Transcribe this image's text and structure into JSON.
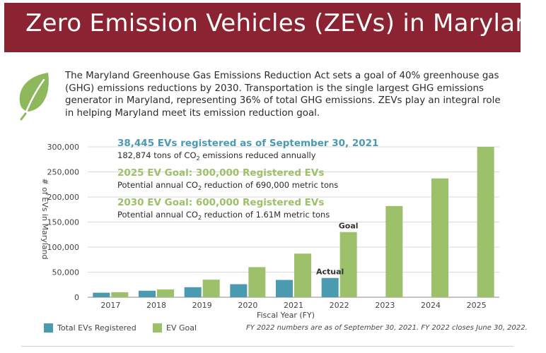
{
  "header": {
    "title": "Zero Emission Vehicles (ZEVs) in Maryland"
  },
  "intro": {
    "text": "The Maryland Greenhouse Gas Emissions Reduction Act sets a goal of 40% greenhouse gas (GHG) emissions reductions by 2030. Transportation is the single largest GHG emissions generator in Maryland, representing 36% of total GHG emissions. ZEVs play an integral role in helping Maryland meet its emission reduction goal."
  },
  "colors": {
    "header": "#8b2332",
    "registered": "#4a9bb0",
    "goal": "#9dc06a",
    "leaf": "#8db85c"
  },
  "chart_data": {
    "type": "bar",
    "categories": [
      "2017",
      "2018",
      "2019",
      "2020",
      "2021",
      "2022",
      "2023",
      "2024",
      "2025"
    ],
    "series": [
      {
        "name": "Total EVs Registered",
        "values": [
          9000,
          13000,
          20000,
          26000,
          34500,
          38445,
          null,
          null,
          null
        ]
      },
      {
        "name": "EV Goal",
        "values": [
          10000,
          15500,
          35000,
          60000,
          87000,
          130000,
          182000,
          237000,
          300000
        ]
      }
    ],
    "xlabel": "Fiscal Year (FY)",
    "ylabel": "# of EVs in Maryland",
    "ylim": [
      0,
      300000
    ],
    "yticks": [
      0,
      50000,
      100000,
      150000,
      200000,
      250000,
      300000
    ],
    "ytick_labels": [
      "0",
      "50,000",
      "100,000",
      "150,000",
      "200,000",
      "250,000",
      "300,000"
    ],
    "bar_labels": [
      {
        "category": "2022",
        "series": "Total EVs Registered",
        "text": "Actual"
      },
      {
        "category": "2022",
        "series": "EV Goal",
        "text": "Goal"
      }
    ],
    "annotations": [
      {
        "title": "38,445 EVs registered as of September 30, 2021",
        "title_color": "#4a9bb0",
        "pre": "182,874 tons of CO",
        "sub": "2",
        "post": " emissions reduced annually"
      },
      {
        "title": "2025 EV Goal: 300,000 Registered EVs",
        "title_color": "#9dc06a",
        "pre": "Potential annual CO",
        "sub": "2",
        "post": " reduction of 690,000 metric tons"
      },
      {
        "title": "2030 EV Goal: 600,000 Registered EVs",
        "title_color": "#9dc06a",
        "pre": "Potential annual CO",
        "sub": "2",
        "post": " reduction of 1.61M metric tons"
      }
    ],
    "grid": true,
    "legend": "bottom-left"
  },
  "legend": {
    "registered_label": "Total EVs Registered",
    "goal_label": "EV Goal"
  },
  "footnote": "FY 2022 numbers are as of September 30, 2021. FY 2022 closes June 30, 2022."
}
